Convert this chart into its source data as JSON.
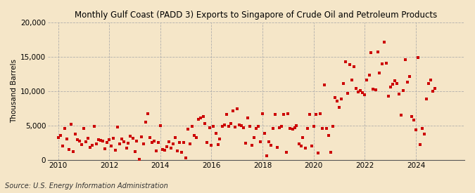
{
  "title": "Monthly Gulf Coast (PADD 3) Exports to Singapore of Crude Oil and Petroleum Products",
  "ylabel": "Thousand Barrels",
  "source": "Source: U.S. Energy Information Administration",
  "background_color": "#f5e6c8",
  "plot_bg_color": "#f5e6c8",
  "marker_color": "#cc0000",
  "marker_size": 7,
  "xlim_min": 2009.6,
  "xlim_max": 2025.9,
  "ylim_min": 0,
  "ylim_max": 20000,
  "yticks": [
    0,
    5000,
    10000,
    15000,
    20000
  ],
  "xticks": [
    2010,
    2012,
    2014,
    2016,
    2018,
    2020,
    2022,
    2024
  ],
  "title_fontsize": 8.5,
  "axis_fontsize": 7.5,
  "source_fontsize": 7,
  "data": [
    [
      2010.0,
      3300
    ],
    [
      2010.08,
      3600
    ],
    [
      2010.17,
      2000
    ],
    [
      2010.25,
      4600
    ],
    [
      2010.33,
      3100
    ],
    [
      2010.42,
      1500
    ],
    [
      2010.5,
      5200
    ],
    [
      2010.58,
      1200
    ],
    [
      2010.67,
      3800
    ],
    [
      2010.75,
      3000
    ],
    [
      2010.83,
      2800
    ],
    [
      2010.92,
      2200
    ],
    [
      2011.0,
      4600
    ],
    [
      2011.08,
      2600
    ],
    [
      2011.17,
      3200
    ],
    [
      2011.25,
      1800
    ],
    [
      2011.33,
      2100
    ],
    [
      2011.42,
      4900
    ],
    [
      2011.5,
      2300
    ],
    [
      2011.58,
      3000
    ],
    [
      2011.67,
      2900
    ],
    [
      2011.75,
      2800
    ],
    [
      2011.83,
      1600
    ],
    [
      2011.92,
      2500
    ],
    [
      2012.0,
      3000
    ],
    [
      2012.08,
      2000
    ],
    [
      2012.17,
      3200
    ],
    [
      2012.25,
      1400
    ],
    [
      2012.33,
      4800
    ],
    [
      2012.42,
      2300
    ],
    [
      2012.5,
      3100
    ],
    [
      2012.58,
      2600
    ],
    [
      2012.67,
      1700
    ],
    [
      2012.75,
      2400
    ],
    [
      2012.83,
      3500
    ],
    [
      2012.92,
      3200
    ],
    [
      2013.0,
      1200
    ],
    [
      2013.08,
      2800
    ],
    [
      2013.17,
      100
    ],
    [
      2013.25,
      3400
    ],
    [
      2013.33,
      2300
    ],
    [
      2013.42,
      5500
    ],
    [
      2013.5,
      6700
    ],
    [
      2013.58,
      3300
    ],
    [
      2013.67,
      2500
    ],
    [
      2013.75,
      2800
    ],
    [
      2013.83,
      1300
    ],
    [
      2013.92,
      2500
    ],
    [
      2014.0,
      5000
    ],
    [
      2014.08,
      1500
    ],
    [
      2014.17,
      1400
    ],
    [
      2014.25,
      1900
    ],
    [
      2014.33,
      2600
    ],
    [
      2014.42,
      1700
    ],
    [
      2014.5,
      2300
    ],
    [
      2014.58,
      3300
    ],
    [
      2014.67,
      1300
    ],
    [
      2014.75,
      2500
    ],
    [
      2014.83,
      1100
    ],
    [
      2014.92,
      2500
    ],
    [
      2015.0,
      300
    ],
    [
      2015.08,
      4500
    ],
    [
      2015.17,
      2300
    ],
    [
      2015.25,
      4900
    ],
    [
      2015.33,
      3600
    ],
    [
      2015.42,
      3300
    ],
    [
      2015.5,
      5900
    ],
    [
      2015.58,
      6100
    ],
    [
      2015.67,
      6300
    ],
    [
      2015.75,
      5300
    ],
    [
      2015.83,
      2500
    ],
    [
      2015.92,
      4700
    ],
    [
      2016.0,
      2100
    ],
    [
      2016.08,
      4900
    ],
    [
      2016.17,
      3900
    ],
    [
      2016.25,
      2200
    ],
    [
      2016.33,
      3100
    ],
    [
      2016.42,
      4900
    ],
    [
      2016.5,
      5100
    ],
    [
      2016.58,
      6600
    ],
    [
      2016.67,
      4900
    ],
    [
      2016.75,
      5300
    ],
    [
      2016.83,
      7100
    ],
    [
      2016.92,
      4800
    ],
    [
      2017.0,
      7400
    ],
    [
      2017.08,
      5100
    ],
    [
      2017.17,
      5000
    ],
    [
      2017.25,
      4700
    ],
    [
      2017.33,
      2400
    ],
    [
      2017.42,
      6100
    ],
    [
      2017.5,
      4900
    ],
    [
      2017.58,
      2100
    ],
    [
      2017.67,
      3300
    ],
    [
      2017.75,
      4600
    ],
    [
      2017.83,
      4900
    ],
    [
      2017.92,
      2700
    ],
    [
      2018.0,
      6700
    ],
    [
      2018.08,
      3900
    ],
    [
      2018.17,
      600
    ],
    [
      2018.25,
      2600
    ],
    [
      2018.33,
      2100
    ],
    [
      2018.42,
      4600
    ],
    [
      2018.5,
      6600
    ],
    [
      2018.58,
      1800
    ],
    [
      2018.67,
      4700
    ],
    [
      2018.75,
      4900
    ],
    [
      2018.83,
      6600
    ],
    [
      2018.92,
      1100
    ],
    [
      2019.0,
      6700
    ],
    [
      2019.08,
      4600
    ],
    [
      2019.17,
      4500
    ],
    [
      2019.25,
      4700
    ],
    [
      2019.33,
      5000
    ],
    [
      2019.42,
      2300
    ],
    [
      2019.5,
      2000
    ],
    [
      2019.58,
      3300
    ],
    [
      2019.67,
      1700
    ],
    [
      2019.75,
      4600
    ],
    [
      2019.83,
      6600
    ],
    [
      2019.92,
      2000
    ],
    [
      2020.0,
      4900
    ],
    [
      2020.08,
      6600
    ],
    [
      2020.17,
      1000
    ],
    [
      2020.25,
      6700
    ],
    [
      2020.33,
      4600
    ],
    [
      2020.42,
      10900
    ],
    [
      2020.5,
      4600
    ],
    [
      2020.58,
      3600
    ],
    [
      2020.67,
      1100
    ],
    [
      2020.75,
      4900
    ],
    [
      2020.83,
      9100
    ],
    [
      2020.92,
      8600
    ],
    [
      2021.0,
      7600
    ],
    [
      2021.08,
      8900
    ],
    [
      2021.17,
      11100
    ],
    [
      2021.25,
      14300
    ],
    [
      2021.33,
      9700
    ],
    [
      2021.42,
      13900
    ],
    [
      2021.5,
      11600
    ],
    [
      2021.58,
      13600
    ],
    [
      2021.67,
      10400
    ],
    [
      2021.75,
      9900
    ],
    [
      2021.83,
      10100
    ],
    [
      2021.92,
      9800
    ],
    [
      2022.0,
      9500
    ],
    [
      2022.08,
      11600
    ],
    [
      2022.17,
      12300
    ],
    [
      2022.25,
      15600
    ],
    [
      2022.33,
      10300
    ],
    [
      2022.42,
      10200
    ],
    [
      2022.5,
      15700
    ],
    [
      2022.58,
      12600
    ],
    [
      2022.67,
      14000
    ],
    [
      2022.75,
      17100
    ],
    [
      2022.83,
      14100
    ],
    [
      2022.92,
      9300
    ],
    [
      2023.0,
      10600
    ],
    [
      2023.08,
      11000
    ],
    [
      2023.17,
      11500
    ],
    [
      2023.25,
      11100
    ],
    [
      2023.33,
      9600
    ],
    [
      2023.42,
      6500
    ],
    [
      2023.5,
      10100
    ],
    [
      2023.58,
      14600
    ],
    [
      2023.67,
      11300
    ],
    [
      2023.75,
      12100
    ],
    [
      2023.83,
      6300
    ],
    [
      2023.92,
      5800
    ],
    [
      2024.0,
      4400
    ],
    [
      2024.08,
      14900
    ],
    [
      2024.17,
      2200
    ],
    [
      2024.25,
      4600
    ],
    [
      2024.33,
      3800
    ],
    [
      2024.42,
      8900
    ],
    [
      2024.5,
      11100
    ],
    [
      2024.58,
      11600
    ],
    [
      2024.67,
      10000
    ],
    [
      2024.75,
      10400
    ]
  ]
}
